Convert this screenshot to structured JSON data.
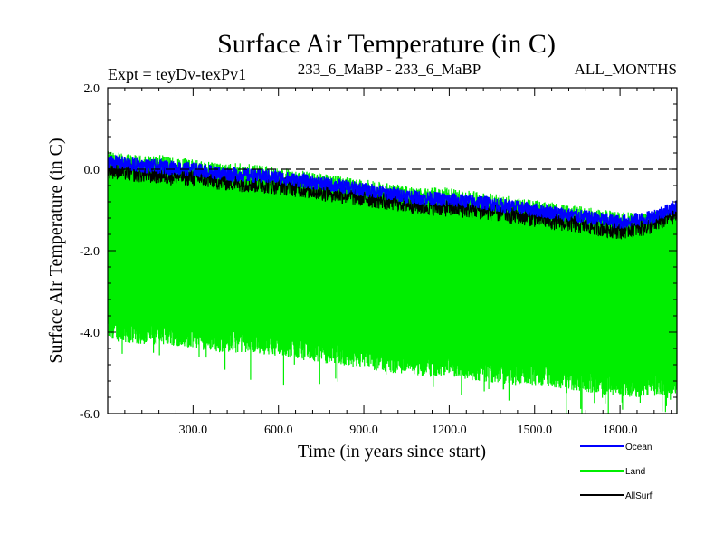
{
  "chart_data": {
    "type": "line",
    "title": "Surface Air Temperature (in C)",
    "subtitle_left": "Expt = teyDv-texPv1",
    "subtitle_center": "233_6_MaBP - 233_6_MaBP",
    "subtitle_right": "ALL_MONTHS",
    "xlabel": "Time (in years since start)",
    "ylabel": "Surface Air Temperature (in C)",
    "xlim": [
      0,
      2000
    ],
    "ylim": [
      -6.0,
      2.0
    ],
    "x_ticks": [
      300,
      600,
      900,
      1200,
      1500,
      1800
    ],
    "x_tick_labels": [
      "300.0",
      "600.0",
      "900.0",
      "1200.0",
      "1500.0",
      "1800.0"
    ],
    "y_ticks": [
      2.0,
      0.0,
      -2.0,
      -4.0,
      -6.0
    ],
    "y_tick_labels": [
      "2.0",
      "0.0",
      "-2.0",
      "-4.0",
      "-6.0"
    ],
    "reference_line": {
      "y": 0.0,
      "style": "dashed",
      "color": "#000000"
    },
    "legend_position": "bottom-right",
    "series": [
      {
        "name": "Land",
        "color": "#00ee00",
        "band": true,
        "x": [
          0,
          100,
          200,
          300,
          400,
          500,
          600,
          700,
          800,
          900,
          1000,
          1100,
          1200,
          1300,
          1400,
          1500,
          1600,
          1700,
          1800,
          1900,
          2000
        ],
        "upper": [
          0.2,
          0.1,
          0.1,
          0.0,
          -0.1,
          -0.1,
          -0.2,
          -0.3,
          -0.4,
          -0.5,
          -0.6,
          -0.7,
          -0.7,
          -0.8,
          -0.9,
          -1.0,
          -1.1,
          -1.2,
          -1.3,
          -1.3,
          -1.2
        ],
        "lower": [
          -3.9,
          -4.0,
          -4.0,
          -4.1,
          -4.2,
          -4.2,
          -4.3,
          -4.4,
          -4.5,
          -4.6,
          -4.7,
          -4.8,
          -4.8,
          -4.9,
          -5.0,
          -5.0,
          -5.1,
          -5.2,
          -5.3,
          -5.3,
          -5.2
        ]
      },
      {
        "name": "AllSurf",
        "color": "#000000",
        "x": [
          0,
          100,
          200,
          300,
          400,
          500,
          600,
          700,
          800,
          900,
          1000,
          1100,
          1200,
          1300,
          1400,
          1500,
          1600,
          1700,
          1800,
          1900,
          2000
        ],
        "values": [
          0.0,
          -0.1,
          -0.15,
          -0.2,
          -0.3,
          -0.35,
          -0.4,
          -0.5,
          -0.6,
          -0.7,
          -0.8,
          -0.9,
          -0.95,
          -1.0,
          -1.1,
          -1.2,
          -1.3,
          -1.4,
          -1.5,
          -1.4,
          -1.1
        ]
      },
      {
        "name": "Ocean",
        "color": "#0000ff",
        "x": [
          0,
          100,
          200,
          300,
          400,
          500,
          600,
          700,
          800,
          900,
          1000,
          1100,
          1200,
          1300,
          1400,
          1500,
          1600,
          1700,
          1800,
          1900,
          2000
        ],
        "values": [
          0.2,
          0.1,
          0.05,
          0.0,
          -0.1,
          -0.15,
          -0.2,
          -0.3,
          -0.4,
          -0.5,
          -0.6,
          -0.7,
          -0.75,
          -0.8,
          -0.9,
          -1.0,
          -1.1,
          -1.2,
          -1.3,
          -1.2,
          -0.9
        ]
      }
    ]
  }
}
